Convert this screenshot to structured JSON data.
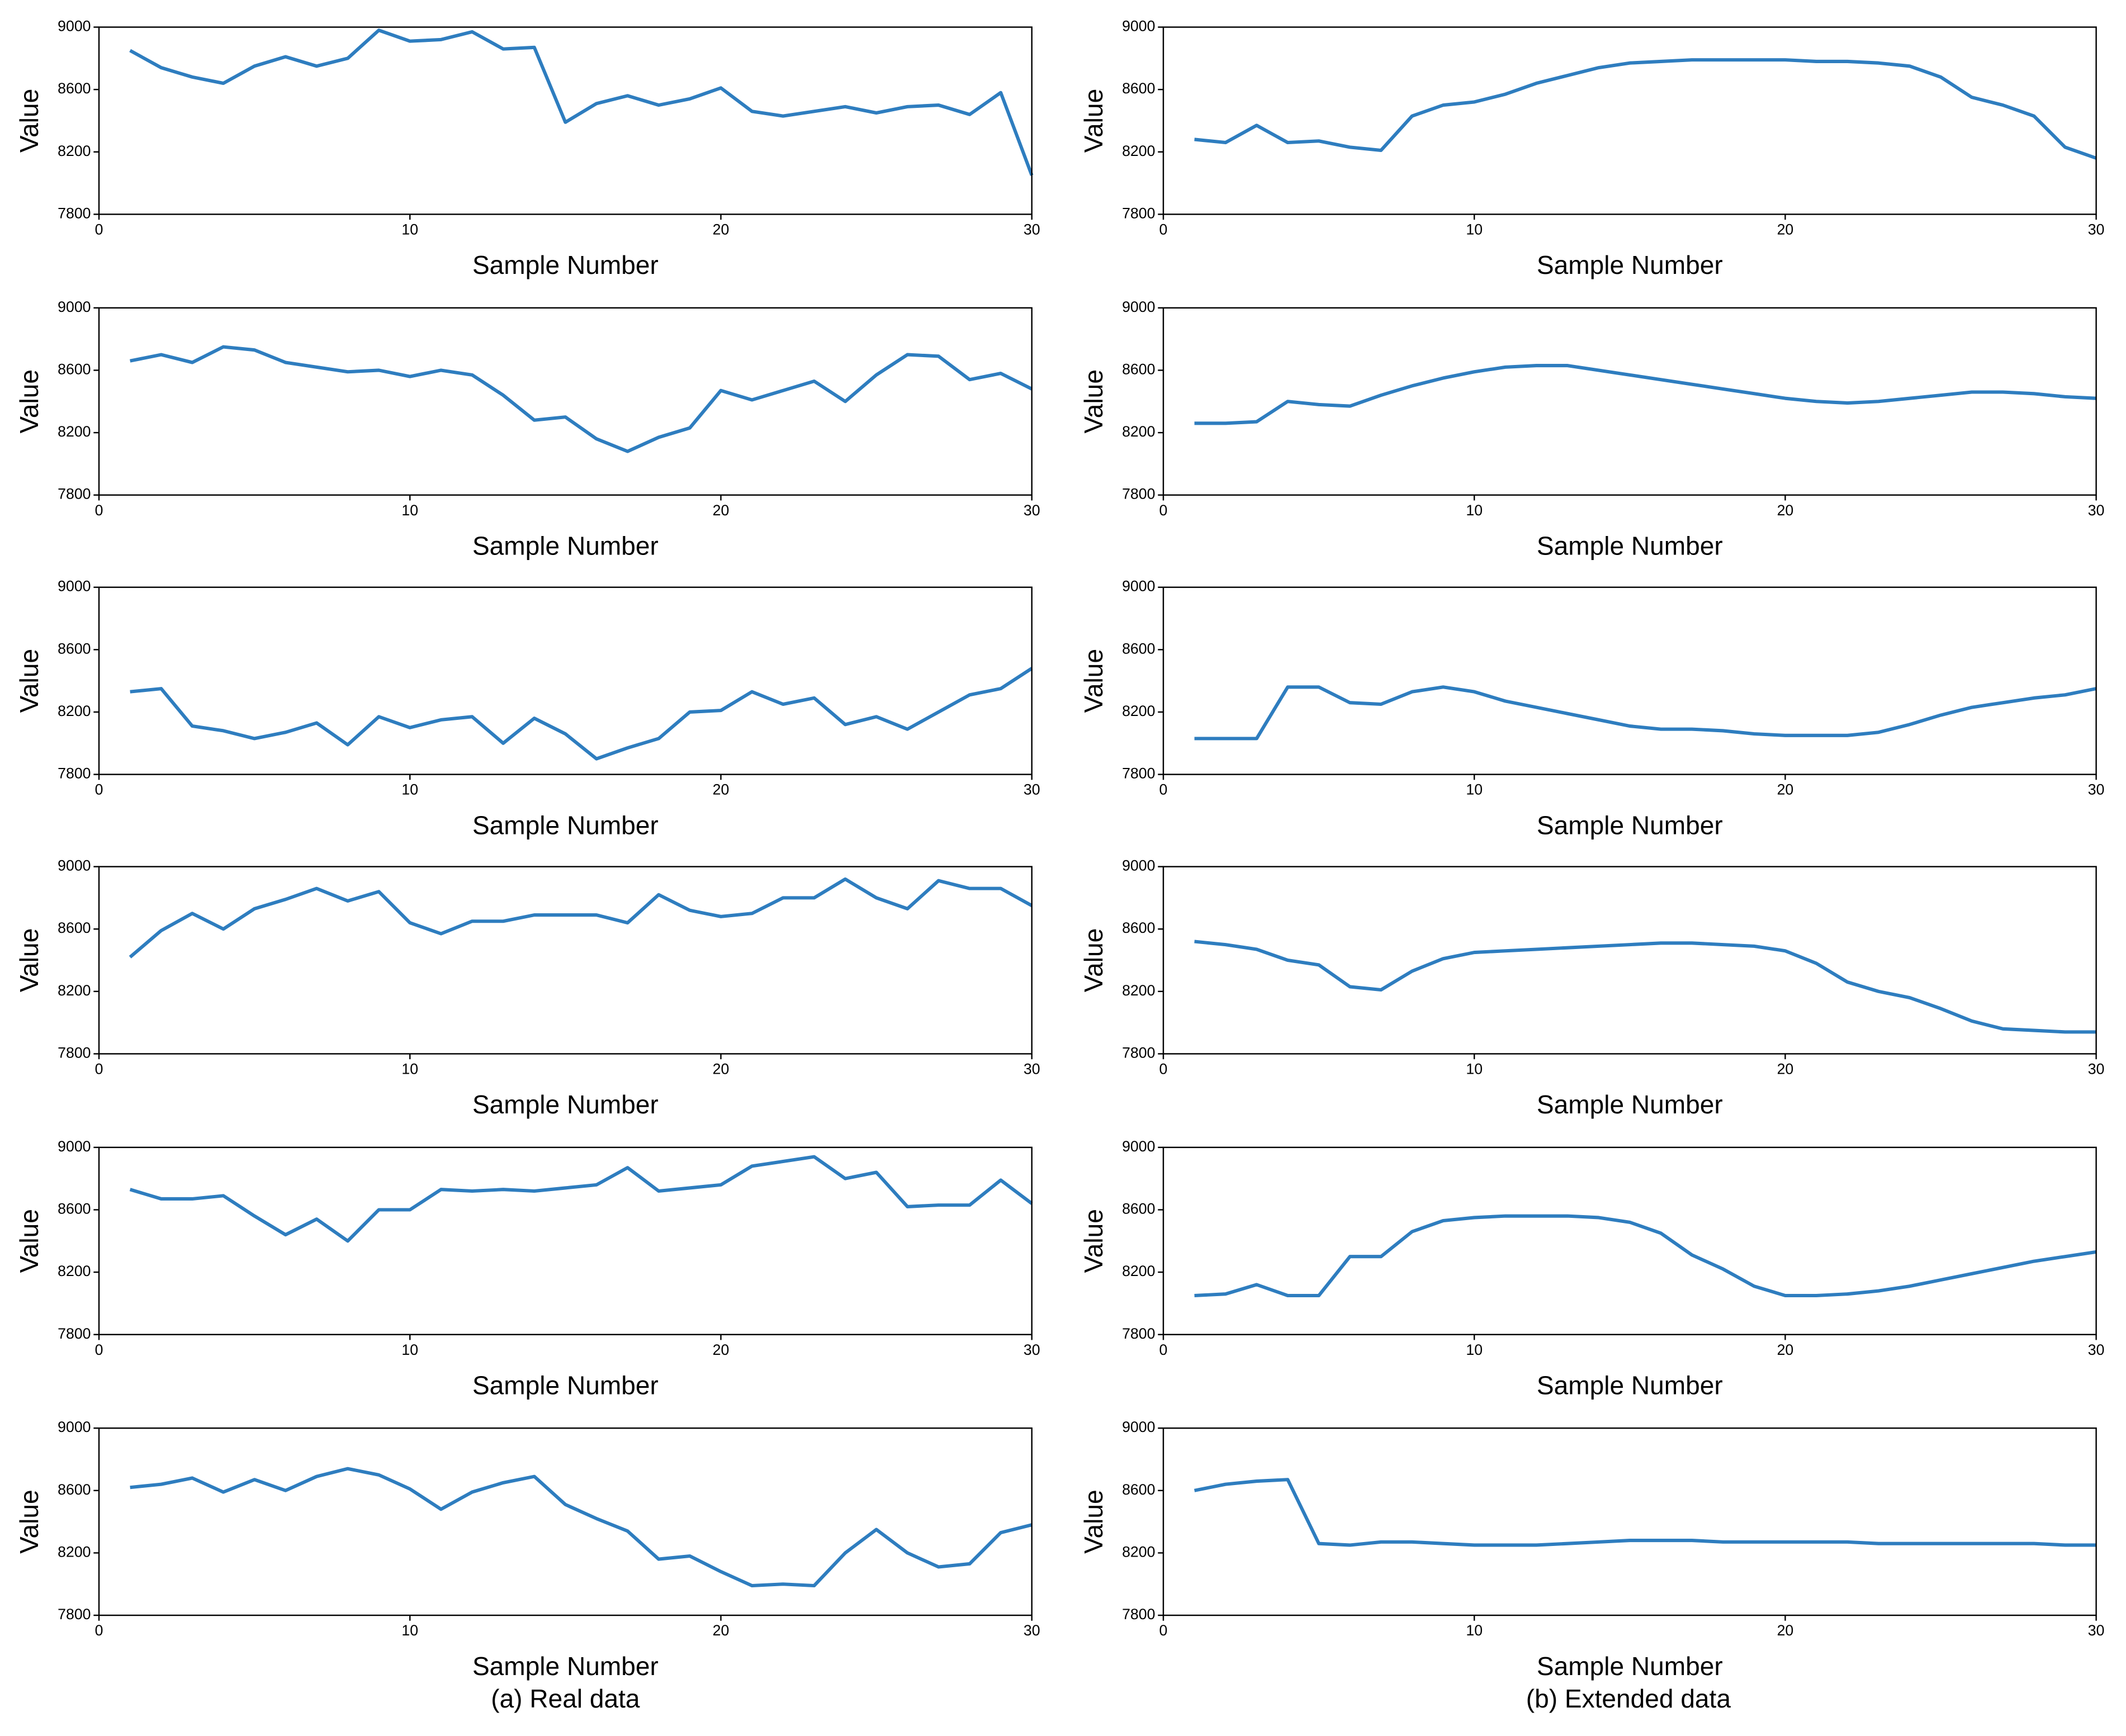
{
  "captions": [
    "(a) Real data",
    "(b) Extended data"
  ],
  "chart_data": [
    {
      "type": "line",
      "xlabel": "Sample Number",
      "ylabel": "Value",
      "xlim": [
        0,
        30
      ],
      "xticks": [
        0,
        10,
        20,
        30
      ],
      "ylim": [
        7800,
        9000
      ],
      "yticks": [
        7800,
        8200,
        8600,
        9000
      ],
      "x": [
        1,
        2,
        3,
        4,
        5,
        6,
        7,
        8,
        9,
        10,
        11,
        12,
        13,
        14,
        15,
        16,
        17,
        18,
        19,
        20,
        21,
        22,
        23,
        24,
        25,
        26,
        27,
        28,
        29,
        30
      ],
      "series": [
        {
          "color": "#2e7dbf",
          "values": [
            8850,
            8740,
            8680,
            8640,
            8750,
            8810,
            8750,
            8800,
            8980,
            8910,
            8920,
            8970,
            8860,
            8870,
            8390,
            8510,
            8560,
            8500,
            8540,
            8610,
            8460,
            8430,
            8460,
            8490,
            8450,
            8490,
            8500,
            8440,
            8580,
            8050
          ]
        }
      ]
    },
    {
      "type": "line",
      "xlabel": "Sample Number",
      "ylabel": "Value",
      "xlim": [
        0,
        30
      ],
      "xticks": [
        0,
        10,
        20,
        30
      ],
      "ylim": [
        7800,
        9000
      ],
      "yticks": [
        7800,
        8200,
        8600,
        9000
      ],
      "x": [
        1,
        2,
        3,
        4,
        5,
        6,
        7,
        8,
        9,
        10,
        11,
        12,
        13,
        14,
        15,
        16,
        17,
        18,
        19,
        20,
        21,
        22,
        23,
        24,
        25,
        26,
        27,
        28,
        29,
        30
      ],
      "series": [
        {
          "color": "#2e7dbf",
          "values": [
            8280,
            8260,
            8370,
            8260,
            8270,
            8230,
            8210,
            8430,
            8500,
            8520,
            8570,
            8640,
            8690,
            8740,
            8770,
            8780,
            8790,
            8790,
            8790,
            8790,
            8780,
            8780,
            8770,
            8750,
            8680,
            8550,
            8500,
            8430,
            8230,
            8160
          ]
        }
      ]
    },
    {
      "type": "line",
      "xlabel": "Sample Number",
      "ylabel": "Value",
      "xlim": [
        0,
        30
      ],
      "xticks": [
        0,
        10,
        20,
        30
      ],
      "ylim": [
        7800,
        9000
      ],
      "yticks": [
        7800,
        8200,
        8600,
        9000
      ],
      "x": [
        1,
        2,
        3,
        4,
        5,
        6,
        7,
        8,
        9,
        10,
        11,
        12,
        13,
        14,
        15,
        16,
        17,
        18,
        19,
        20,
        21,
        22,
        23,
        24,
        25,
        26,
        27,
        28,
        29,
        30
      ],
      "series": [
        {
          "color": "#2e7dbf",
          "values": [
            8660,
            8700,
            8650,
            8750,
            8730,
            8650,
            8620,
            8590,
            8600,
            8560,
            8600,
            8570,
            8440,
            8280,
            8300,
            8160,
            8080,
            8170,
            8230,
            8470,
            8410,
            8470,
            8530,
            8400,
            8570,
            8700,
            8690,
            8540,
            8580,
            8480
          ]
        }
      ]
    },
    {
      "type": "line",
      "xlabel": "Sample Number",
      "ylabel": "Value",
      "xlim": [
        0,
        30
      ],
      "xticks": [
        0,
        10,
        20,
        30
      ],
      "ylim": [
        7800,
        9000
      ],
      "yticks": [
        7800,
        8200,
        8600,
        9000
      ],
      "x": [
        1,
        2,
        3,
        4,
        5,
        6,
        7,
        8,
        9,
        10,
        11,
        12,
        13,
        14,
        15,
        16,
        17,
        18,
        19,
        20,
        21,
        22,
        23,
        24,
        25,
        26,
        27,
        28,
        29,
        30
      ],
      "series": [
        {
          "color": "#2e7dbf",
          "values": [
            8260,
            8260,
            8270,
            8400,
            8380,
            8370,
            8440,
            8500,
            8550,
            8590,
            8620,
            8630,
            8630,
            8600,
            8570,
            8540,
            8510,
            8480,
            8450,
            8420,
            8400,
            8390,
            8400,
            8420,
            8440,
            8460,
            8460,
            8450,
            8430,
            8420
          ]
        }
      ]
    },
    {
      "type": "line",
      "xlabel": "Sample Number",
      "ylabel": "Value",
      "xlim": [
        0,
        30
      ],
      "xticks": [
        0,
        10,
        20,
        30
      ],
      "ylim": [
        7800,
        9000
      ],
      "yticks": [
        7800,
        8200,
        8600,
        9000
      ],
      "x": [
        1,
        2,
        3,
        4,
        5,
        6,
        7,
        8,
        9,
        10,
        11,
        12,
        13,
        14,
        15,
        16,
        17,
        18,
        19,
        20,
        21,
        22,
        23,
        24,
        25,
        26,
        27,
        28,
        29,
        30
      ],
      "series": [
        {
          "color": "#2e7dbf",
          "values": [
            8330,
            8350,
            8110,
            8080,
            8030,
            8070,
            8130,
            7990,
            8170,
            8100,
            8150,
            8170,
            8000,
            8160,
            8060,
            7900,
            7970,
            8030,
            8200,
            8210,
            8330,
            8250,
            8290,
            8120,
            8170,
            8090,
            8200,
            8310,
            8350,
            8480
          ]
        }
      ]
    },
    {
      "type": "line",
      "xlabel": "Sample Number",
      "ylabel": "Value",
      "xlim": [
        0,
        30
      ],
      "xticks": [
        0,
        10,
        20,
        30
      ],
      "ylim": [
        7800,
        9000
      ],
      "yticks": [
        7800,
        8200,
        8600,
        9000
      ],
      "x": [
        1,
        2,
        3,
        4,
        5,
        6,
        7,
        8,
        9,
        10,
        11,
        12,
        13,
        14,
        15,
        16,
        17,
        18,
        19,
        20,
        21,
        22,
        23,
        24,
        25,
        26,
        27,
        28,
        29,
        30
      ],
      "series": [
        {
          "color": "#2e7dbf",
          "values": [
            8030,
            8030,
            8030,
            8360,
            8360,
            8260,
            8250,
            8330,
            8360,
            8330,
            8270,
            8230,
            8190,
            8150,
            8110,
            8090,
            8090,
            8080,
            8060,
            8050,
            8050,
            8050,
            8070,
            8120,
            8180,
            8230,
            8260,
            8290,
            8310,
            8350
          ]
        }
      ]
    },
    {
      "type": "line",
      "xlabel": "Sample Number",
      "ylabel": "Value",
      "xlim": [
        0,
        30
      ],
      "xticks": [
        0,
        10,
        20,
        30
      ],
      "ylim": [
        7800,
        9000
      ],
      "yticks": [
        7800,
        8200,
        8600,
        9000
      ],
      "x": [
        1,
        2,
        3,
        4,
        5,
        6,
        7,
        8,
        9,
        10,
        11,
        12,
        13,
        14,
        15,
        16,
        17,
        18,
        19,
        20,
        21,
        22,
        23,
        24,
        25,
        26,
        27,
        28,
        29,
        30
      ],
      "series": [
        {
          "color": "#2e7dbf",
          "values": [
            8420,
            8590,
            8700,
            8600,
            8730,
            8790,
            8860,
            8780,
            8840,
            8640,
            8570,
            8650,
            8650,
            8690,
            8690,
            8690,
            8640,
            8820,
            8720,
            8680,
            8700,
            8800,
            8800,
            8920,
            8800,
            8730,
            8910,
            8860,
            8860,
            8750
          ]
        }
      ]
    },
    {
      "type": "line",
      "xlabel": "Sample Number",
      "ylabel": "Value",
      "xlim": [
        0,
        30
      ],
      "xticks": [
        0,
        10,
        20,
        30
      ],
      "ylim": [
        7800,
        9000
      ],
      "yticks": [
        7800,
        8200,
        8600,
        9000
      ],
      "x": [
        1,
        2,
        3,
        4,
        5,
        6,
        7,
        8,
        9,
        10,
        11,
        12,
        13,
        14,
        15,
        16,
        17,
        18,
        19,
        20,
        21,
        22,
        23,
        24,
        25,
        26,
        27,
        28,
        29,
        30
      ],
      "series": [
        {
          "color": "#2e7dbf",
          "values": [
            8520,
            8500,
            8470,
            8400,
            8370,
            8230,
            8210,
            8330,
            8410,
            8450,
            8460,
            8470,
            8480,
            8490,
            8500,
            8510,
            8510,
            8500,
            8490,
            8460,
            8380,
            8260,
            8200,
            8160,
            8090,
            8010,
            7960,
            7950,
            7940,
            7940
          ]
        }
      ]
    },
    {
      "type": "line",
      "xlabel": "Sample Number",
      "ylabel": "Value",
      "xlim": [
        0,
        30
      ],
      "xticks": [
        0,
        10,
        20,
        30
      ],
      "ylim": [
        7800,
        9000
      ],
      "yticks": [
        7800,
        8200,
        8600,
        9000
      ],
      "x": [
        1,
        2,
        3,
        4,
        5,
        6,
        7,
        8,
        9,
        10,
        11,
        12,
        13,
        14,
        15,
        16,
        17,
        18,
        19,
        20,
        21,
        22,
        23,
        24,
        25,
        26,
        27,
        28,
        29,
        30
      ],
      "series": [
        {
          "color": "#2e7dbf",
          "values": [
            8730,
            8670,
            8670,
            8690,
            8560,
            8440,
            8540,
            8400,
            8600,
            8600,
            8730,
            8720,
            8730,
            8720,
            8740,
            8760,
            8870,
            8720,
            8740,
            8760,
            8880,
            8910,
            8940,
            8800,
            8840,
            8620,
            8630,
            8630,
            8790,
            8640
          ]
        }
      ]
    },
    {
      "type": "line",
      "xlabel": "Sample Number",
      "ylabel": "Value",
      "xlim": [
        0,
        30
      ],
      "xticks": [
        0,
        10,
        20,
        30
      ],
      "ylim": [
        7800,
        9000
      ],
      "yticks": [
        7800,
        8200,
        8600,
        9000
      ],
      "x": [
        1,
        2,
        3,
        4,
        5,
        6,
        7,
        8,
        9,
        10,
        11,
        12,
        13,
        14,
        15,
        16,
        17,
        18,
        19,
        20,
        21,
        22,
        23,
        24,
        25,
        26,
        27,
        28,
        29,
        30
      ],
      "series": [
        {
          "color": "#2e7dbf",
          "values": [
            8050,
            8060,
            8120,
            8050,
            8050,
            8300,
            8300,
            8460,
            8530,
            8550,
            8560,
            8560,
            8560,
            8550,
            8520,
            8450,
            8310,
            8220,
            8110,
            8050,
            8050,
            8060,
            8080,
            8110,
            8150,
            8190,
            8230,
            8270,
            8300,
            8330
          ]
        }
      ]
    },
    {
      "type": "line",
      "xlabel": "Sample Number",
      "ylabel": "Value",
      "xlim": [
        0,
        30
      ],
      "xticks": [
        0,
        10,
        20,
        30
      ],
      "ylim": [
        7800,
        9000
      ],
      "yticks": [
        7800,
        8200,
        8600,
        9000
      ],
      "x": [
        1,
        2,
        3,
        4,
        5,
        6,
        7,
        8,
        9,
        10,
        11,
        12,
        13,
        14,
        15,
        16,
        17,
        18,
        19,
        20,
        21,
        22,
        23,
        24,
        25,
        26,
        27,
        28,
        29,
        30
      ],
      "series": [
        {
          "color": "#2e7dbf",
          "values": [
            8620,
            8640,
            8680,
            8590,
            8670,
            8600,
            8690,
            8740,
            8700,
            8610,
            8480,
            8590,
            8650,
            8690,
            8510,
            8420,
            8340,
            8160,
            8180,
            8080,
            7990,
            8000,
            7990,
            8200,
            8350,
            8200,
            8110,
            8130,
            8330,
            8380
          ]
        }
      ]
    },
    {
      "type": "line",
      "xlabel": "Sample Number",
      "ylabel": "Value",
      "xlim": [
        0,
        30
      ],
      "xticks": [
        0,
        10,
        20,
        30
      ],
      "ylim": [
        7800,
        9000
      ],
      "yticks": [
        7800,
        8200,
        8600,
        9000
      ],
      "x": [
        1,
        2,
        3,
        4,
        5,
        6,
        7,
        8,
        9,
        10,
        11,
        12,
        13,
        14,
        15,
        16,
        17,
        18,
        19,
        20,
        21,
        22,
        23,
        24,
        25,
        26,
        27,
        28,
        29,
        30
      ],
      "series": [
        {
          "color": "#2e7dbf",
          "values": [
            8600,
            8640,
            8660,
            8670,
            8260,
            8250,
            8270,
            8270,
            8260,
            8250,
            8250,
            8250,
            8260,
            8270,
            8280,
            8280,
            8280,
            8270,
            8270,
            8270,
            8270,
            8270,
            8260,
            8260,
            8260,
            8260,
            8260,
            8260,
            8250,
            8250
          ]
        }
      ]
    }
  ]
}
